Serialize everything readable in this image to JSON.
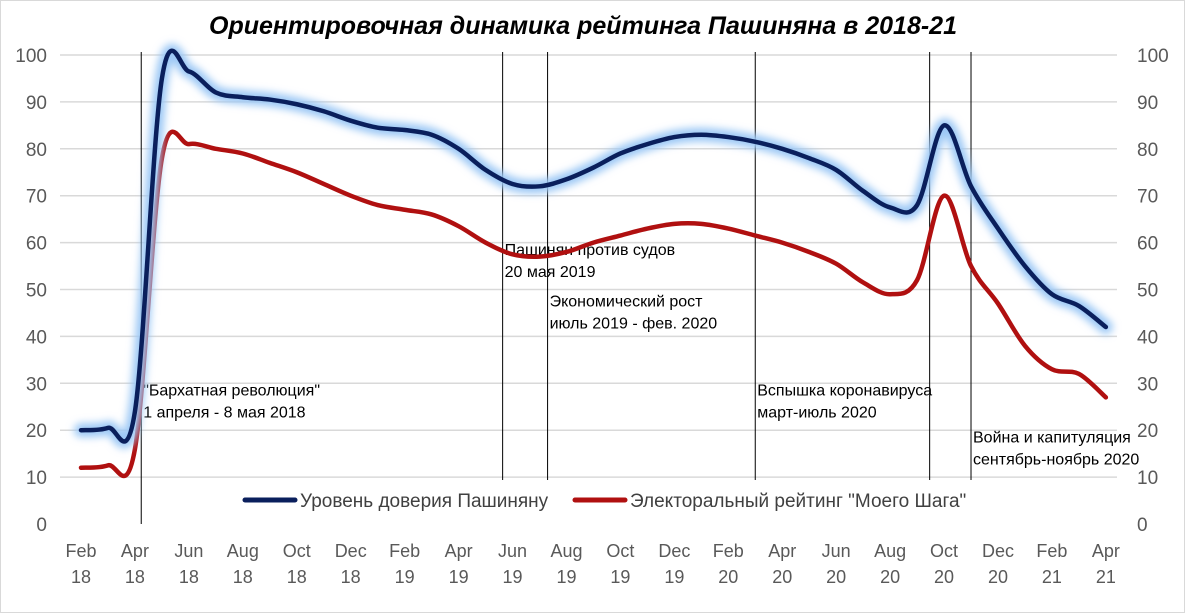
{
  "chart_data": {
    "type": "line",
    "title": "Ориентировочная динамика рейтинга Пашиняна в 2018-21",
    "ylim": [
      0,
      100
    ],
    "yticks": [
      0,
      10,
      20,
      30,
      40,
      50,
      60,
      70,
      80,
      90,
      100
    ],
    "secondary_y_axis": true,
    "grid": true,
    "legend_position": "bottom-inside",
    "x_tick_labels": [
      [
        "Feb",
        "18"
      ],
      [
        "Apr",
        "18"
      ],
      [
        "Jun",
        "18"
      ],
      [
        "Aug",
        "18"
      ],
      [
        "Oct",
        "18"
      ],
      [
        "Dec",
        "18"
      ],
      [
        "Feb",
        "19"
      ],
      [
        "Apr",
        "19"
      ],
      [
        "Jun",
        "19"
      ],
      [
        "Aug",
        "19"
      ],
      [
        "Oct",
        "19"
      ],
      [
        "Dec",
        "19"
      ],
      [
        "Feb",
        "20"
      ],
      [
        "Apr",
        "20"
      ],
      [
        "Jun",
        "20"
      ],
      [
        "Aug",
        "20"
      ],
      [
        "Oct",
        "20"
      ],
      [
        "Dec",
        "20"
      ],
      [
        "Feb",
        "21"
      ],
      [
        "Apr",
        "21"
      ]
    ],
    "x": [
      "2018-02",
      "2018-03",
      "2018-04",
      "2018-05",
      "2018-06",
      "2018-07",
      "2018-08",
      "2018-09",
      "2018-10",
      "2018-11",
      "2018-12",
      "2019-01",
      "2019-02",
      "2019-03",
      "2019-04",
      "2019-05",
      "2019-06",
      "2019-07",
      "2019-08",
      "2019-09",
      "2019-10",
      "2019-11",
      "2019-12",
      "2020-01",
      "2020-02",
      "2020-03",
      "2020-04",
      "2020-05",
      "2020-06",
      "2020-07",
      "2020-08",
      "2020-09",
      "2020-10",
      "2020-11",
      "2020-12",
      "2021-01",
      "2021-02",
      "2021-03",
      "2021-04"
    ],
    "series": [
      {
        "name": "Уровень доверия Пашиняну",
        "color": "#0a1f5c",
        "glow": "#9cc8f5",
        "values": [
          20,
          20.5,
          24,
          95,
          96.5,
          92,
          91,
          90.5,
          89.5,
          88,
          86,
          84.5,
          84,
          83,
          80,
          75.5,
          72.5,
          72,
          73.5,
          76,
          79,
          81,
          82.5,
          83,
          82.5,
          81.5,
          80,
          78,
          75.5,
          71,
          67.5,
          68,
          85,
          72,
          63,
          55,
          49,
          46.5,
          42
        ]
      },
      {
        "name": "Электоральный рейтинг \"Моего Шага\"",
        "color": "#b01010",
        "values": [
          12,
          12.5,
          16,
          78,
          81,
          80,
          79,
          77,
          75,
          72.5,
          70,
          68,
          67,
          66,
          63.5,
          60,
          57.5,
          57,
          58,
          60,
          61.5,
          63,
          64,
          64,
          63,
          61.5,
          60,
          58,
          55.5,
          51.5,
          49,
          52,
          70,
          55,
          47,
          38,
          33,
          32,
          27
        ]
      }
    ],
    "events": [
      {
        "x": "2018-04-08",
        "lines": [
          "\"Бархатная революция\"",
          "1 апреля - 8 мая 2018"
        ],
        "label_level": 28
      },
      {
        "x": "2019-05-20",
        "lines": [
          "Пашинян против судов",
          "20 мая 2019"
        ],
        "label_level": 58
      },
      {
        "x": "2019-07-10",
        "lines": [
          "Экономический рост",
          "июль 2019 - фев. 2020"
        ],
        "label_level": 47
      },
      {
        "x": "2020-03-01",
        "lines": [
          "Вспышка коронавируса",
          "март-июль 2020"
        ],
        "label_level": 28
      },
      {
        "x": "2020-09-15",
        "lines": [],
        "label_level": 0
      },
      {
        "x": "2020-11-01",
        "lines": [
          "Война и капитуляция",
          "сентябрь-ноябрь 2020"
        ],
        "label_level": 18
      }
    ]
  }
}
